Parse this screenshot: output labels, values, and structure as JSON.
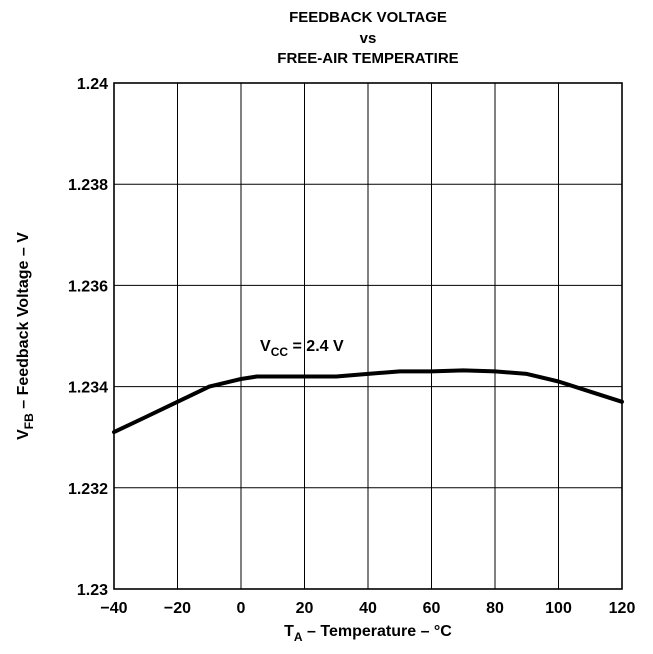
{
  "chart_data": {
    "type": "line",
    "title_lines": [
      "FEEDBACK VOLTAGE",
      "vs",
      "FREE-AIR TEMPERATIRE"
    ],
    "xlabel": {
      "main": "T",
      "sub": "A",
      "rest": " – Temperature – °C"
    },
    "ylabel": {
      "main": "V",
      "sub": "FB",
      "rest": " – Feedback Voltage – V"
    },
    "xlim": [
      -40,
      120
    ],
    "ylim": [
      1.23,
      1.24
    ],
    "x_ticks": [
      -40,
      -20,
      0,
      20,
      40,
      60,
      80,
      100,
      120
    ],
    "x_tick_labels": [
      "−40",
      "−20",
      "0",
      "20",
      "40",
      "60",
      "80",
      "100",
      "120"
    ],
    "y_ticks": [
      1.23,
      1.232,
      1.234,
      1.236,
      1.238,
      1.24
    ],
    "y_tick_labels": [
      "1.23",
      "1.232",
      "1.234",
      "1.236",
      "1.238",
      "1.24"
    ],
    "grid": true,
    "annotation": {
      "main": "V",
      "sub": "CC",
      "rest": " = 2.4 V",
      "x": 6,
      "y": 1.2347
    },
    "series": [
      {
        "x": [
          -40,
          -30,
          -20,
          -10,
          0,
          5,
          10,
          20,
          30,
          40,
          50,
          60,
          70,
          80,
          90,
          100,
          110,
          120
        ],
        "y": [
          1.2331,
          1.2334,
          1.2337,
          1.234,
          1.23415,
          1.2342,
          1.2342,
          1.2342,
          1.2342,
          1.23425,
          1.2343,
          1.2343,
          1.23432,
          1.2343,
          1.23425,
          1.2341,
          1.2339,
          1.2337
        ]
      }
    ]
  }
}
